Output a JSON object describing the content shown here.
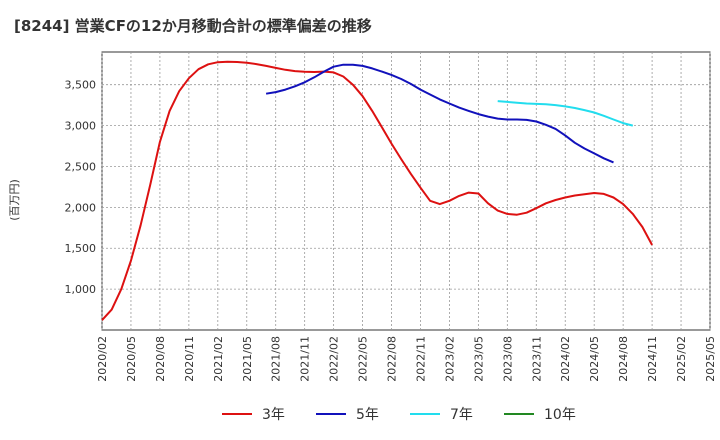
{
  "chart_data": {
    "type": "line",
    "title": "[8244]  営業CFの12か月移動合計の標準偏差の推移",
    "ylabel": "(百万円)",
    "xlabel": "",
    "ylim": [
      500,
      3900
    ],
    "yticks": [
      1000,
      1500,
      2000,
      2500,
      3000,
      3500
    ],
    "ytick_labels": [
      "1,000",
      "1,500",
      "2,000",
      "2,500",
      "3,000",
      "3,500"
    ],
    "xlim": [
      "2020/02",
      "2025/05"
    ],
    "xticks": [
      "2020/02",
      "2020/05",
      "2020/08",
      "2020/11",
      "2021/02",
      "2021/05",
      "2021/08",
      "2021/11",
      "2022/02",
      "2022/05",
      "2022/08",
      "2022/11",
      "2023/02",
      "2023/05",
      "2023/08",
      "2023/11",
      "2024/02",
      "2024/05",
      "2024/08",
      "2024/11",
      "2025/02",
      "2025/05"
    ],
    "grid": true,
    "legend_position": "bottom",
    "series": [
      {
        "name": "3年",
        "color": "#dd1111",
        "points": [
          [
            "2020/02",
            620
          ],
          [
            "2020/03",
            750
          ],
          [
            "2020/04",
            1000
          ],
          [
            "2020/05",
            1350
          ],
          [
            "2020/06",
            1780
          ],
          [
            "2020/07",
            2280
          ],
          [
            "2020/08",
            2800
          ],
          [
            "2020/09",
            3180
          ],
          [
            "2020/10",
            3420
          ],
          [
            "2020/11",
            3580
          ],
          [
            "2020/12",
            3690
          ],
          [
            "2021/01",
            3750
          ],
          [
            "2021/02",
            3775
          ],
          [
            "2021/03",
            3780
          ],
          [
            "2021/04",
            3778
          ],
          [
            "2021/05",
            3768
          ],
          [
            "2021/06",
            3752
          ],
          [
            "2021/07",
            3730
          ],
          [
            "2021/08",
            3705
          ],
          [
            "2021/09",
            3682
          ],
          [
            "2021/10",
            3667
          ],
          [
            "2021/11",
            3658
          ],
          [
            "2021/12",
            3655
          ],
          [
            "2022/01",
            3660
          ],
          [
            "2022/02",
            3650
          ],
          [
            "2022/03",
            3600
          ],
          [
            "2022/04",
            3500
          ],
          [
            "2022/05",
            3360
          ],
          [
            "2022/06",
            3180
          ],
          [
            "2022/07",
            2980
          ],
          [
            "2022/08",
            2780
          ],
          [
            "2022/09",
            2590
          ],
          [
            "2022/10",
            2410
          ],
          [
            "2022/11",
            2240
          ],
          [
            "2022/12",
            2080
          ],
          [
            "2023/01",
            2040
          ],
          [
            "2023/02",
            2080
          ],
          [
            "2023/03",
            2140
          ],
          [
            "2023/04",
            2180
          ],
          [
            "2023/05",
            2170
          ],
          [
            "2023/06",
            2050
          ],
          [
            "2023/07",
            1960
          ],
          [
            "2023/08",
            1920
          ],
          [
            "2023/09",
            1910
          ],
          [
            "2023/10",
            1935
          ],
          [
            "2023/11",
            1990
          ],
          [
            "2023/12",
            2050
          ],
          [
            "2024/01",
            2090
          ],
          [
            "2024/02",
            2120
          ],
          [
            "2024/03",
            2145
          ],
          [
            "2024/04",
            2160
          ],
          [
            "2024/05",
            2175
          ],
          [
            "2024/06",
            2165
          ],
          [
            "2024/07",
            2120
          ],
          [
            "2024/08",
            2040
          ],
          [
            "2024/09",
            1920
          ],
          [
            "2024/10",
            1760
          ],
          [
            "2024/11",
            1540
          ]
        ]
      },
      {
        "name": "5年",
        "color": "#1111bb",
        "points": [
          [
            "2021/07",
            3390
          ],
          [
            "2021/08",
            3410
          ],
          [
            "2021/09",
            3440
          ],
          [
            "2021/10",
            3480
          ],
          [
            "2021/11",
            3530
          ],
          [
            "2021/12",
            3590
          ],
          [
            "2022/01",
            3660
          ],
          [
            "2022/02",
            3720
          ],
          [
            "2022/03",
            3745
          ],
          [
            "2022/04",
            3745
          ],
          [
            "2022/05",
            3730
          ],
          [
            "2022/06",
            3700
          ],
          [
            "2022/07",
            3660
          ],
          [
            "2022/08",
            3620
          ],
          [
            "2022/09",
            3570
          ],
          [
            "2022/10",
            3510
          ],
          [
            "2022/11",
            3440
          ],
          [
            "2022/12",
            3380
          ],
          [
            "2023/01",
            3320
          ],
          [
            "2023/02",
            3270
          ],
          [
            "2023/03",
            3220
          ],
          [
            "2023/04",
            3180
          ],
          [
            "2023/05",
            3140
          ],
          [
            "2023/06",
            3110
          ],
          [
            "2023/07",
            3085
          ],
          [
            "2023/08",
            3075
          ],
          [
            "2023/09",
            3075
          ],
          [
            "2023/10",
            3070
          ],
          [
            "2023/11",
            3050
          ],
          [
            "2023/12",
            3010
          ],
          [
            "2024/01",
            2960
          ],
          [
            "2024/02",
            2880
          ],
          [
            "2024/03",
            2790
          ],
          [
            "2024/04",
            2720
          ],
          [
            "2024/05",
            2660
          ],
          [
            "2024/06",
            2600
          ],
          [
            "2024/07",
            2550
          ]
        ]
      },
      {
        "name": "7年",
        "color": "#22ddee",
        "points": [
          [
            "2023/07",
            3300
          ],
          [
            "2023/08",
            3290
          ],
          [
            "2023/09",
            3280
          ],
          [
            "2023/10",
            3270
          ],
          [
            "2023/11",
            3265
          ],
          [
            "2023/12",
            3260
          ],
          [
            "2024/01",
            3250
          ],
          [
            "2024/02",
            3235
          ],
          [
            "2024/03",
            3215
          ],
          [
            "2024/04",
            3190
          ],
          [
            "2024/05",
            3160
          ],
          [
            "2024/06",
            3120
          ],
          [
            "2024/07",
            3075
          ],
          [
            "2024/08",
            3030
          ],
          [
            "2024/09",
            3000
          ]
        ]
      },
      {
        "name": "10年",
        "color": "#228822",
        "points": []
      }
    ]
  }
}
